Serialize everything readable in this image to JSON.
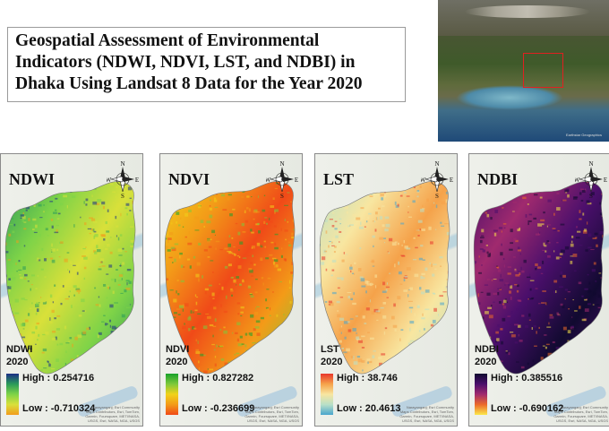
{
  "title": "Geospatial Assessment of Environmental Indicators (NDWI, NDVI, LST, and NDBI) in Dhaka Using Landsat 8 Data for the Year 2020",
  "overview": {
    "credit": "Earthstar Geographics",
    "highlight_color": "#e02020"
  },
  "compass": {
    "n": "N",
    "s": "S",
    "e": "E",
    "w": "W"
  },
  "panels": [
    {
      "id": "ndwi",
      "label": "NDWI",
      "legend_title": "NDWI",
      "year": "2020",
      "high": "High : 0.254716",
      "low": "Low : -0.710324",
      "colors": [
        "#1b2f86",
        "#2a9a5a",
        "#7ed348",
        "#d9e03a",
        "#f29c1c"
      ]
    },
    {
      "id": "ndvi",
      "label": "NDVI",
      "legend_title": "NDVI",
      "year": "2020",
      "high": "High : 0.827282",
      "low": "Low : -0.236699",
      "colors": [
        "#18a22b",
        "#7dc83b",
        "#f1d21a",
        "#f39b18",
        "#f04a18"
      ]
    },
    {
      "id": "lst",
      "label": "LST",
      "legend_title": "LST",
      "year": "2020",
      "high": "High : 38.746",
      "low": "Low : 20.4613",
      "colors": [
        "#e8372c",
        "#f5a24a",
        "#f8e6a0",
        "#b9e0c8",
        "#4aa6cd"
      ]
    },
    {
      "id": "ndbi",
      "label": "NDBI",
      "legend_title": "NDBI",
      "year": "2020",
      "high": "High : 0.385516",
      "low": "Low : -0.690162",
      "colors": [
        "#110a30",
        "#4a0f6b",
        "#a02a6e",
        "#ec6a2a",
        "#fbe84a"
      ]
    }
  ],
  "map_credit": "Narayanganj; Esri Community Maps Contributors, Esri, TomTom, Garmin, Foursquare, METI/NASA, USGS, Esri, NASA, NGA, USGS"
}
